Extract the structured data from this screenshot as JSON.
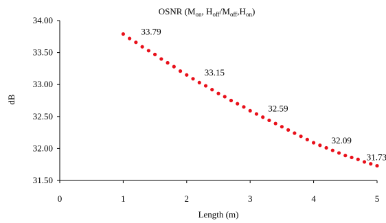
{
  "chart_data": {
    "type": "scatter",
    "title": {
      "main": "OSNR (M",
      "parts": [
        {
          "t": "OSNR (M"
        },
        {
          "t": "on",
          "sub": true
        },
        {
          "t": ", H"
        },
        {
          "t": "off",
          "sub": true
        },
        {
          "t": "/M"
        },
        {
          "t": "off",
          "sub": true
        },
        {
          "t": ",H"
        },
        {
          "t": "on",
          "sub": true
        },
        {
          "t": ")"
        }
      ]
    },
    "xlabel": "Length (m)",
    "ylabel": "dB",
    "xlim": [
      0,
      5
    ],
    "ylim": [
      31.5,
      34.0
    ],
    "x_ticks": [
      "0",
      "1",
      "2",
      "3",
      "4",
      "5"
    ],
    "y_ticks": [
      "31.50",
      "32.00",
      "32.50",
      "33.00",
      "33.50",
      "34.00"
    ],
    "grid": false,
    "marker_color": "#e8101a",
    "series": [
      {
        "x": [
          1.0,
          1.1,
          1.2,
          1.3,
          1.4,
          1.5,
          1.6,
          1.7,
          1.8,
          1.9,
          2.0,
          2.1,
          2.2,
          2.3,
          2.4,
          2.5,
          2.6,
          2.7,
          2.8,
          2.9,
          3.0,
          3.1,
          3.2,
          3.3,
          3.4,
          3.5,
          3.6,
          3.7,
          3.8,
          3.9,
          4.0,
          4.1,
          4.2,
          4.3,
          4.4,
          4.5,
          4.6,
          4.7,
          4.8,
          4.9,
          5.0
        ],
        "y": [
          33.79,
          33.72,
          33.66,
          33.59,
          33.53,
          33.47,
          33.4,
          33.34,
          33.28,
          33.21,
          33.15,
          33.09,
          33.03,
          32.98,
          32.92,
          32.86,
          32.81,
          32.75,
          32.7,
          32.65,
          32.59,
          32.54,
          32.49,
          32.44,
          32.39,
          32.34,
          32.29,
          32.24,
          32.19,
          32.14,
          32.09,
          32.05,
          32.01,
          31.97,
          31.93,
          31.89,
          31.86,
          31.83,
          31.79,
          31.76,
          31.73
        ]
      }
    ],
    "data_labels": [
      {
        "x": 1,
        "y": 33.79,
        "text": "33.79"
      },
      {
        "x": 2,
        "y": 33.15,
        "text": "33.15"
      },
      {
        "x": 3,
        "y": 32.59,
        "text": "32.59"
      },
      {
        "x": 4,
        "y": 32.09,
        "text": "32.09"
      },
      {
        "x": 5,
        "y": 31.73,
        "text": "31.73"
      }
    ]
  }
}
